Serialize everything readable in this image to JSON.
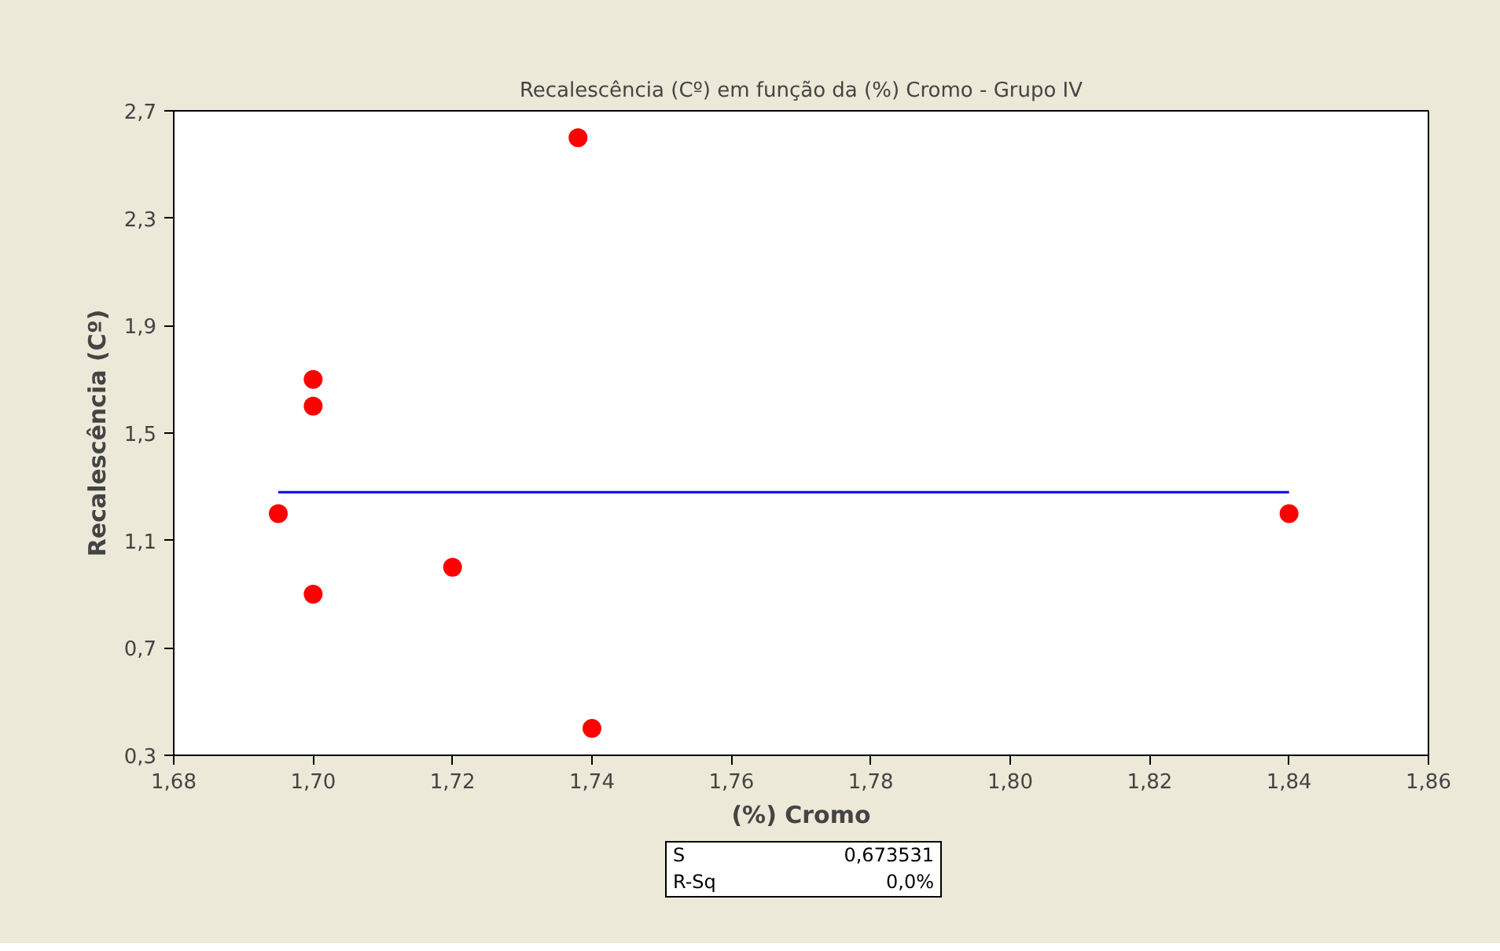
{
  "chart_data": {
    "type": "scatter",
    "title": "Recalescência (Cº) em função da (%) Cromo - Grupo IV",
    "xlabel": "(%) Cromo",
    "ylabel": "Recalescência (Cº)",
    "series": [
      {
        "color": "#ff0000",
        "marker": "circle",
        "x": [
          1.695,
          1.7,
          1.7,
          1.7,
          1.72,
          1.738,
          1.74,
          1.84
        ],
        "values": [
          1.2,
          1.7,
          1.6,
          0.9,
          1.0,
          2.6,
          0.4,
          1.2
        ]
      },
      {
        "type": "line",
        "color": "#0000ff",
        "x": [
          1.695,
          1.84
        ],
        "values": [
          1.28,
          1.28
        ]
      }
    ],
    "xlim": [
      1.68,
      1.86
    ],
    "ylim": [
      0.3,
      2.7
    ],
    "xticks": [
      {
        "value": 1.68,
        "label": "1,68"
      },
      {
        "value": 1.7,
        "label": "1,70"
      },
      {
        "value": 1.72,
        "label": "1,72"
      },
      {
        "value": 1.74,
        "label": "1,74"
      },
      {
        "value": 1.76,
        "label": "1,76"
      },
      {
        "value": 1.78,
        "label": "1,78"
      },
      {
        "value": 1.8,
        "label": "1,80"
      },
      {
        "value": 1.82,
        "label": "1,82"
      },
      {
        "value": 1.84,
        "label": "1,84"
      },
      {
        "value": 1.86,
        "label": "1,86"
      }
    ],
    "yticks": [
      {
        "value": 0.3,
        "label": "0,3"
      },
      {
        "value": 0.7,
        "label": "0,7"
      },
      {
        "value": 1.1,
        "label": "1,1"
      },
      {
        "value": 1.5,
        "label": "1,5"
      },
      {
        "value": 1.9,
        "label": "1,9"
      },
      {
        "value": 2.3,
        "label": "2,3"
      },
      {
        "value": 2.7,
        "label": "2,7"
      }
    ],
    "grid": false,
    "annotations": [
      "S",
      "0,673531",
      "R-Sq",
      "0,0%"
    ]
  }
}
